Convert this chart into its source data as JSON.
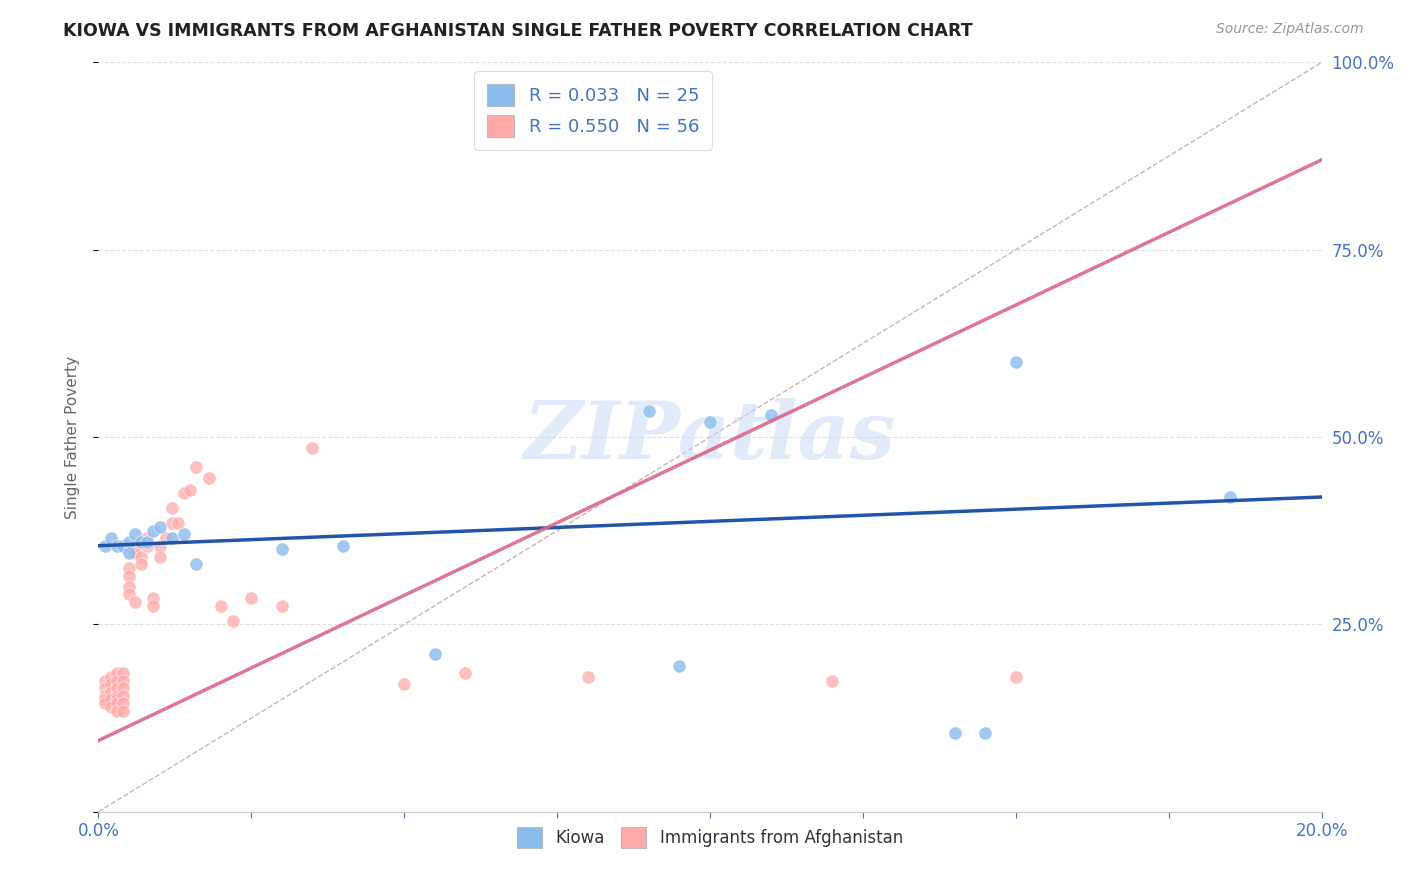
{
  "title": "KIOWA VS IMMIGRANTS FROM AFGHANISTAN SINGLE FATHER POVERTY CORRELATION CHART",
  "source": "Source: ZipAtlas.com",
  "ylabel": "Single Father Poverty",
  "xlim": [
    0,
    0.2
  ],
  "ylim": [
    0,
    1.0
  ],
  "xticks": [
    0.0,
    0.025,
    0.05,
    0.075,
    0.1,
    0.125,
    0.15,
    0.175,
    0.2
  ],
  "yticks": [
    0.0,
    0.25,
    0.5,
    0.75,
    1.0
  ],
  "legend_r1": "R = 0.033",
  "legend_n1": "N = 25",
  "legend_r2": "R = 0.550",
  "legend_n2": "N = 56",
  "kiowa_color": "#88bbee",
  "afghanistan_color": "#ffaaaa",
  "kiowa_line_color": "#2255aa",
  "afghanistan_line_color": "#dd6688",
  "diagonal_color": "#ccaaaa",
  "watermark_text": "ZIPatlas",
  "watermark_color": "#c8daf5",
  "title_color": "#222222",
  "axis_color": "#4472c4",
  "grid_color": "#e0e0e0",
  "background_color": "#ffffff",
  "kiowa_x": [
    0.001,
    0.002,
    0.003,
    0.004,
    0.005,
    0.005,
    0.006,
    0.007,
    0.008,
    0.009,
    0.01,
    0.012,
    0.014,
    0.016,
    0.03,
    0.04,
    0.055,
    0.09,
    0.095,
    0.1,
    0.11,
    0.14,
    0.145,
    0.15,
    0.185
  ],
  "kiowa_y": [
    0.355,
    0.365,
    0.355,
    0.355,
    0.36,
    0.345,
    0.37,
    0.36,
    0.36,
    0.375,
    0.38,
    0.365,
    0.37,
    0.33,
    0.35,
    0.355,
    0.21,
    0.535,
    0.195,
    0.52,
    0.53,
    0.105,
    0.105,
    0.6,
    0.42
  ],
  "afghanistan_x": [
    0.001,
    0.001,
    0.001,
    0.001,
    0.001,
    0.002,
    0.002,
    0.002,
    0.002,
    0.002,
    0.003,
    0.003,
    0.003,
    0.003,
    0.003,
    0.003,
    0.003,
    0.004,
    0.004,
    0.004,
    0.004,
    0.004,
    0.004,
    0.005,
    0.005,
    0.005,
    0.005,
    0.006,
    0.006,
    0.006,
    0.007,
    0.007,
    0.008,
    0.008,
    0.009,
    0.009,
    0.01,
    0.01,
    0.011,
    0.012,
    0.012,
    0.013,
    0.014,
    0.015,
    0.016,
    0.018,
    0.02,
    0.022,
    0.025,
    0.03,
    0.035,
    0.05,
    0.06,
    0.08,
    0.12,
    0.15
  ],
  "afghanistan_y": [
    0.175,
    0.165,
    0.155,
    0.15,
    0.145,
    0.18,
    0.17,
    0.16,
    0.15,
    0.14,
    0.185,
    0.175,
    0.165,
    0.155,
    0.15,
    0.145,
    0.135,
    0.185,
    0.175,
    0.165,
    0.155,
    0.145,
    0.135,
    0.325,
    0.315,
    0.3,
    0.29,
    0.355,
    0.345,
    0.28,
    0.34,
    0.33,
    0.365,
    0.355,
    0.285,
    0.275,
    0.355,
    0.34,
    0.365,
    0.405,
    0.385,
    0.385,
    0.425,
    0.43,
    0.46,
    0.445,
    0.275,
    0.255,
    0.285,
    0.275,
    0.485,
    0.17,
    0.185,
    0.18,
    0.175,
    0.18
  ],
  "kiowa_line_x": [
    0.0,
    0.2
  ],
  "kiowa_line_y": [
    0.355,
    0.42
  ],
  "afghanistan_line_x": [
    0.0,
    0.2
  ],
  "afghanistan_line_y": [
    0.095,
    0.87
  ]
}
